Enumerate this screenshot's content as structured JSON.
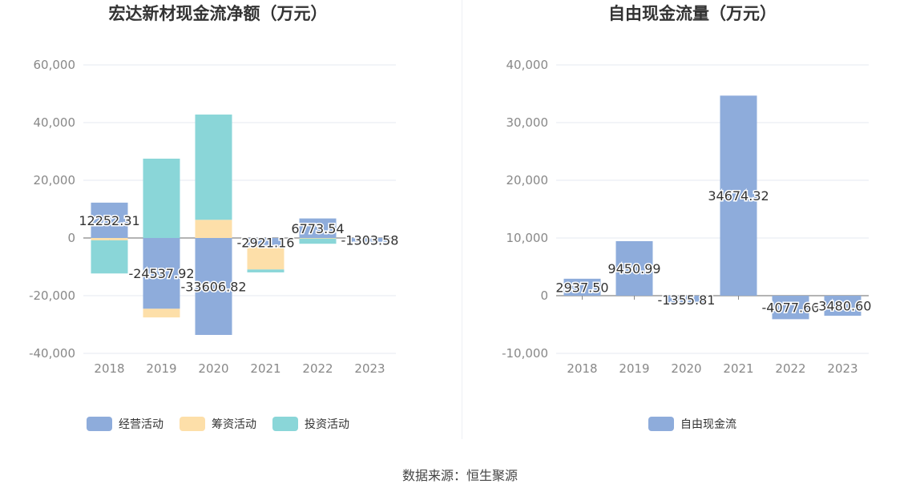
{
  "source": "数据来源：恒生聚源",
  "chart_data": [
    {
      "type": "bar",
      "stacked": true,
      "title": "宏达新材现金流净额（万元）",
      "categories": [
        "2018",
        "2019",
        "2020",
        "2021",
        "2022",
        "2023"
      ],
      "ylim": [
        -40000,
        60000
      ],
      "yticks": [
        60000,
        40000,
        20000,
        0,
        -20000,
        -40000
      ],
      "ytick_labels": [
        "60,000",
        "40,000",
        "20,000",
        "0",
        "-20,000",
        "-40,000"
      ],
      "legend_position": "bottom",
      "series": [
        {
          "name": "经营活动",
          "color": "#8eacdb",
          "values": [
            12252.31,
            -24537.92,
            -33606.82,
            -2921.16,
            6773.54,
            -1303.58
          ],
          "labels": [
            "12252.31",
            "-24537.92",
            "-33606.82",
            "-2921.16",
            "6773.54",
            "-1303.58"
          ]
        },
        {
          "name": "筹资活动",
          "color": "#fddfa9",
          "values": [
            -800,
            -3000,
            6300,
            -8000,
            -200,
            0
          ]
        },
        {
          "name": "投资活动",
          "color": "#8ad6d8",
          "values": [
            -11500,
            27500,
            36500,
            -1000,
            -1800,
            0
          ]
        }
      ]
    },
    {
      "type": "bar",
      "title": "自由现金流量（万元）",
      "categories": [
        "2018",
        "2019",
        "2020",
        "2021",
        "2022",
        "2023"
      ],
      "ylim": [
        -10000,
        40000
      ],
      "yticks": [
        40000,
        30000,
        20000,
        10000,
        0,
        -10000
      ],
      "ytick_labels": [
        "40,000",
        "30,000",
        "20,000",
        "10,000",
        "0",
        "-10,000"
      ],
      "legend_position": "bottom",
      "series": [
        {
          "name": "自由现金流",
          "color": "#8eacdb",
          "values": [
            2937.5,
            9450.99,
            -1355.81,
            34674.32,
            -4077.66,
            -3480.6
          ],
          "labels": [
            "2937.50",
            "9450.99",
            "-1355.81",
            "34674.32",
            "-4077.66",
            "-3480.60"
          ]
        }
      ]
    }
  ]
}
